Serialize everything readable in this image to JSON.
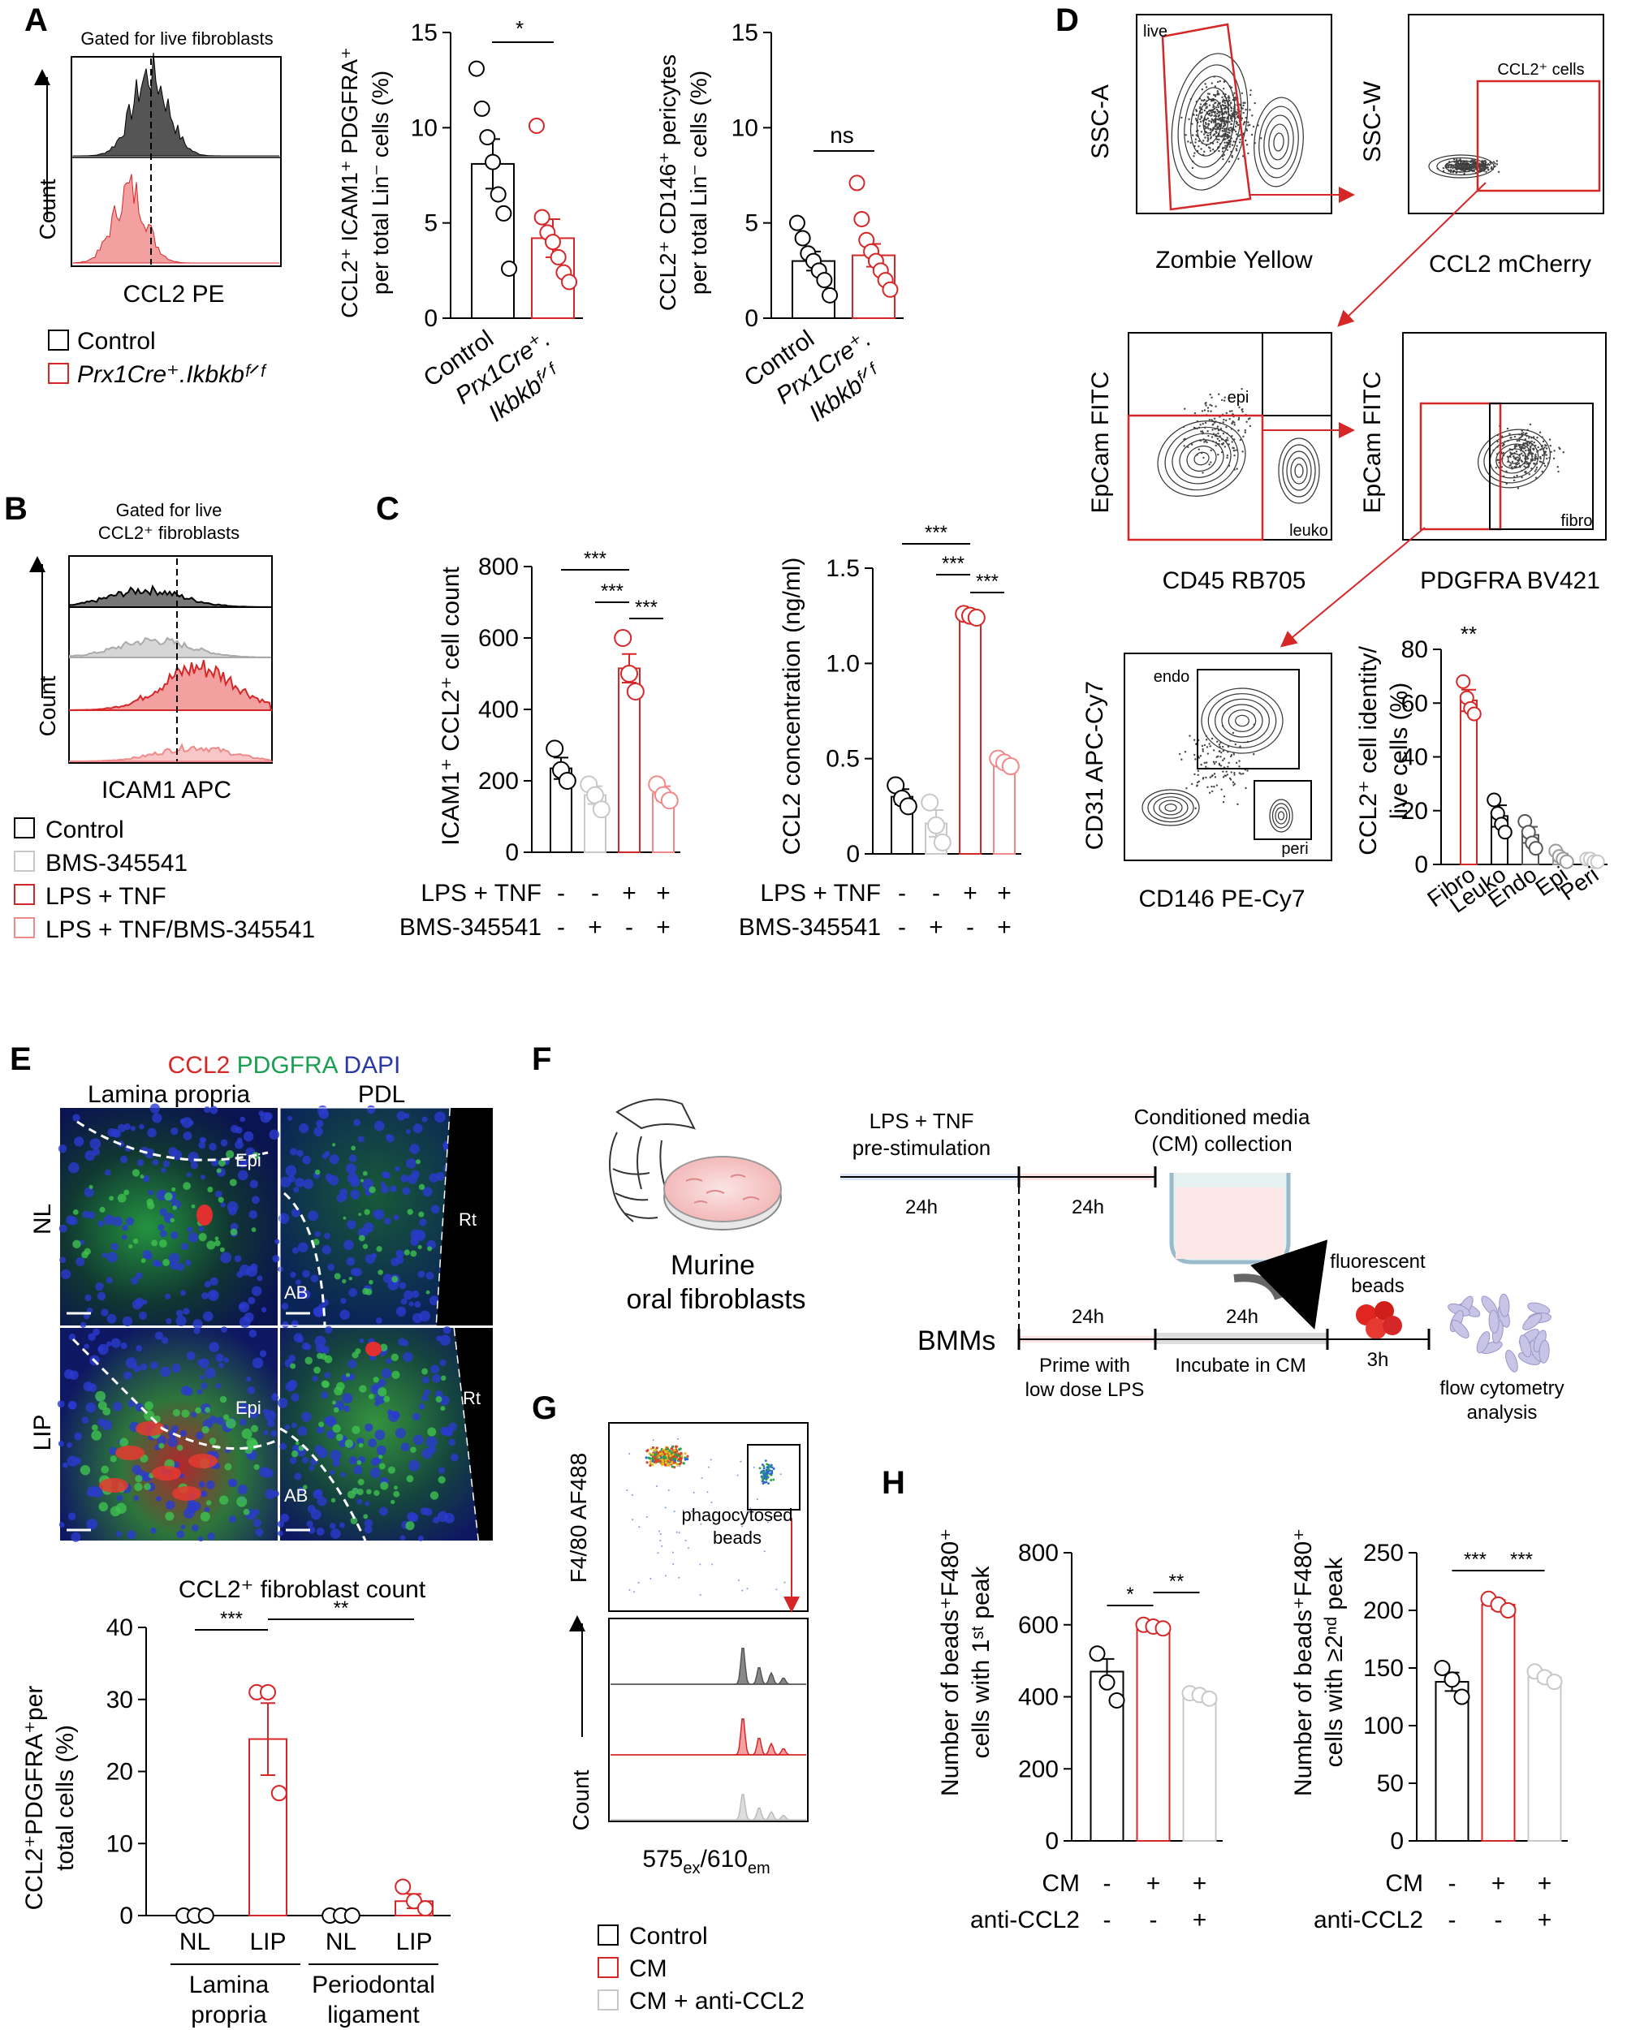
{
  "colors": {
    "control": "#000000",
    "treated": "#d62728",
    "inhibitor": "#c8c8c8",
    "combo": "#f08a8a"
  },
  "panelA": {
    "letter": "A",
    "histogram": {
      "title": "Gated for live fibroblasts",
      "xlabel": "CCL2 PE",
      "ylabel": "Count"
    },
    "legend": [
      "Control",
      "Prx1Cre⁺.Ikbkbᶠᐟᶠ"
    ],
    "scatter1": {
      "ylabel_lines": [
        "CCL2⁺ ICAM1⁺ PDGFRA⁺",
        "per total Lin⁻ cells (%)"
      ],
      "yticks": [
        "0",
        "5",
        "10",
        "15"
      ],
      "xticks": [
        "Control",
        "Prx1Cre⁺.",
        "Ikbkbᶠᐟᶠ"
      ],
      "sig": "*"
    },
    "scatter2": {
      "ylabel_lines": [
        "CCL2⁺ CD146⁺ pericytes",
        "per total Lin⁻ cells (%)"
      ],
      "yticks": [
        "0",
        "5",
        "10",
        "15"
      ],
      "xticks": [
        "Control",
        "Prx1Cre⁺.",
        "Ikbkbᶠᐟᶠ"
      ],
      "sig": "ns"
    }
  },
  "panelB": {
    "letter": "B",
    "title_lines": [
      "Gated for live",
      "CCL2⁺ fibroblasts"
    ],
    "xlabel": "ICAM1 APC",
    "ylabel": "Count",
    "legend": [
      "Control",
      "BMS-345541",
      "LPS + TNF",
      "LPS + TNF/BMS-345541"
    ]
  },
  "panelC": {
    "letter": "C",
    "chart1": {
      "ylabel": "ICAM1⁺ CCL2⁺ cell count",
      "yticks": [
        "0",
        "200",
        "400",
        "600",
        "800"
      ],
      "sig": [
        "***",
        "***",
        "***"
      ]
    },
    "chart2": {
      "ylabel": "CCL2 concentration (ng/ml)",
      "yticks": [
        "0",
        "0.5",
        "1.0",
        "1.5"
      ],
      "sig": [
        "***",
        "***",
        "***"
      ]
    },
    "row1_label": "LPS + TNF",
    "row2_label": "BMS-345541",
    "row1_signs": [
      "-",
      "-",
      "+",
      "+"
    ],
    "row2_signs": [
      "-",
      "+",
      "-",
      "+"
    ]
  },
  "panelD": {
    "letter": "D",
    "plot1": {
      "ylabel": "SSC-A",
      "xlabel": "Zombie Yellow",
      "gate": "live"
    },
    "plot2": {
      "ylabel": "SSC-W",
      "xlabel": "CCL2 mCherry",
      "gate": "CCL2⁺ cells"
    },
    "plot3": {
      "ylabel": "EpCam FITC",
      "xlabel": "CD45 RB705",
      "gates": [
        "epi",
        "leuko"
      ]
    },
    "plot4": {
      "ylabel": "EpCam FITC",
      "xlabel": "PDGFRA BV421",
      "gate": "fibro"
    },
    "plot5": {
      "ylabel": "CD31 APC-Cy7",
      "xlabel": "CD146 PE-Cy7",
      "gates": [
        "endo",
        "peri"
      ]
    },
    "bar": {
      "ylabel_lines": [
        "CCL2⁺ cell identity/",
        "live cells (%)"
      ],
      "yticks": [
        "0",
        "20",
        "40",
        "60",
        "80"
      ],
      "sig": "**"
    }
  },
  "panelE": {
    "letter": "E",
    "stain": {
      "ccl2": "CCL2",
      "pdgfra": "PDGFRA",
      "dapi": "DAPI"
    },
    "col_headers": [
      "Lamina propria",
      "PDL"
    ],
    "row_labels": [
      "NL",
      "LIP"
    ],
    "tissue_labels": {
      "epi": "Epi",
      "ab": "AB",
      "rt": "Rt"
    },
    "chart_title": "CCL2⁺ fibroblast count",
    "ylabel_lines": [
      "CCL2⁺PDGFRA⁺per",
      "total cells (%)"
    ],
    "yticks": [
      "0",
      "10",
      "20",
      "30",
      "40"
    ],
    "groups": [
      "Lamina",
      "propria",
      "Periodontal",
      "ligament"
    ],
    "sig": [
      "***",
      "**"
    ]
  },
  "panelF": {
    "letter": "F",
    "murine_lines": [
      "Murine",
      "oral fibroblasts"
    ],
    "prestim_lines": [
      "LPS + TNF",
      "pre-stimulation"
    ],
    "cm_lines": [
      "Conditioned media",
      "(CM) collection"
    ],
    "t1": "24h",
    "t2": "24h",
    "t3": "24h",
    "t4": "24h",
    "t5": "3h",
    "bmms": "BMMs",
    "beads_lines": [
      "fluorescent",
      "beads"
    ],
    "prime_lines": [
      "Prime with",
      "low dose LPS"
    ],
    "incubate": "Incubate in CM",
    "flow_lines": [
      "flow cytometry",
      "analysis"
    ]
  },
  "panelG": {
    "letter": "G",
    "ylabel": "F4/80 AF488",
    "gate_lines": [
      "phagocytosed",
      "beads"
    ],
    "hist_ylabel": "Count",
    "xlabel_main": "575",
    "xlabel_sub1": "ex",
    "xlabel_mid": "/610",
    "xlabel_sub2": "em",
    "legend": [
      "Control",
      "CM",
      "CM + anti-CCL2"
    ]
  },
  "panelH": {
    "letter": "H",
    "chart1": {
      "ylabel_lines": [
        "Number of beads⁺F480⁺",
        "cells with 1ˢᵗ peak"
      ],
      "yticks": [
        "0",
        "200",
        "400",
        "600",
        "800"
      ],
      "sig": [
        "*",
        "**"
      ]
    },
    "chart2": {
      "ylabel_lines": [
        "Number of beads⁺F480⁺",
        "cells with ≥2ⁿᵈ peak"
      ],
      "yticks": [
        "0",
        "50",
        "100",
        "150",
        "200",
        "250"
      ],
      "sig": [
        "***",
        "***"
      ]
    },
    "row1_label": "CM",
    "row2_label": "anti-CCL2",
    "row1_signs": [
      "-",
      "+",
      "+"
    ],
    "row2_signs": [
      "-",
      "-",
      "+"
    ]
  },
  "chart_data": [
    {
      "id": "A-left",
      "type": "bar",
      "categories": [
        "Control",
        "Prx1Cre⁺.Ikbkbᶠᐟᶠ"
      ],
      "values": [
        8.1,
        4.2
      ],
      "errors": [
        1.3,
        1.0
      ],
      "points": [
        [
          13.1,
          11.0,
          9.5,
          8.2,
          6.5,
          5.5,
          2.6
        ],
        [
          10.1,
          5.3,
          4.5,
          4.0,
          3.2,
          2.4,
          1.9
        ]
      ],
      "ylim": [
        0,
        15
      ]
    },
    {
      "id": "A-right",
      "type": "bar",
      "categories": [
        "Control",
        "Prx1Cre⁺.Ikbkbᶠᐟᶠ"
      ],
      "values": [
        3.0,
        3.3
      ],
      "errors": [
        0.5,
        0.6
      ],
      "points": [
        [
          5.0,
          4.2,
          3.4,
          3.0,
          2.5,
          2.0,
          1.2
        ],
        [
          7.1,
          5.2,
          4.1,
          3.5,
          3.0,
          2.5,
          2.0,
          1.5
        ]
      ],
      "ylim": [
        0,
        15
      ]
    },
    {
      "id": "C-left",
      "type": "bar",
      "categories": [
        "Control",
        "BMS-345541",
        "LPS + TNF",
        "LPS + TNF/BMS-345541"
      ],
      "values": [
        235,
        160,
        515,
        165
      ],
      "errors": [
        30,
        25,
        40,
        20
      ],
      "points": [
        [
          290,
          230,
          200
        ],
        [
          190,
          160,
          120
        ],
        [
          600,
          500,
          450
        ],
        [
          190,
          160,
          145
        ]
      ],
      "ylim": [
        0,
        800
      ]
    },
    {
      "id": "C-right",
      "type": "bar",
      "categories": [
        "Control",
        "BMS-345541",
        "LPS + TNF",
        "LPS + TNF/BMS-345541"
      ],
      "values": [
        0.3,
        0.16,
        1.25,
        0.48
      ],
      "errors": [
        0.04,
        0.07,
        0.01,
        0.02
      ],
      "points": [
        [
          0.36,
          0.29,
          0.25
        ],
        [
          0.27,
          0.15,
          0.06
        ],
        [
          1.26,
          1.25,
          1.24
        ],
        [
          0.5,
          0.48,
          0.46
        ]
      ],
      "ylim": [
        0,
        1.5
      ]
    },
    {
      "id": "D-bar",
      "type": "bar",
      "categories": [
        "Fibro",
        "Leuko",
        "Endo",
        "Epi",
        "Peri"
      ],
      "values": [
        61,
        18,
        11,
        3,
        1.5
      ],
      "errors": [
        4,
        4,
        3,
        1,
        0.5
      ],
      "points": [
        [
          68,
          62,
          58,
          56
        ],
        [
          24,
          19,
          15,
          12
        ],
        [
          16,
          12,
          8,
          6
        ],
        [
          5,
          3,
          2,
          1
        ],
        [
          2,
          2,
          1,
          1
        ]
      ],
      "ylim": [
        0,
        80
      ]
    },
    {
      "id": "E-bar",
      "type": "bar",
      "categories": [
        "NL",
        "LIP",
        "NL",
        "LIP"
      ],
      "values": [
        0,
        24.5,
        0,
        2
      ],
      "errors": [
        0,
        5,
        0,
        1
      ],
      "points": [
        [
          0,
          0,
          0
        ],
        [
          31,
          31,
          17
        ],
        [
          0,
          0,
          0
        ],
        [
          4,
          2,
          1
        ]
      ],
      "ylim": [
        0,
        40
      ]
    },
    {
      "id": "H-left",
      "type": "bar",
      "categories": [
        "Control",
        "CM",
        "CM + anti-CCL2"
      ],
      "values": [
        470,
        595,
        405
      ],
      "errors": [
        35,
        5,
        10
      ],
      "points": [
        [
          520,
          440,
          390
        ],
        [
          600,
          595,
          590
        ],
        [
          410,
          405,
          395
        ]
      ],
      "ylim": [
        0,
        800
      ]
    },
    {
      "id": "H-right",
      "type": "bar",
      "categories": [
        "Control",
        "CM",
        "CM + anti-CCL2"
      ],
      "values": [
        138,
        205,
        142
      ],
      "errors": [
        8,
        4,
        4
      ],
      "points": [
        [
          150,
          140,
          125
        ],
        [
          210,
          205,
          200
        ],
        [
          147,
          142,
          138
        ]
      ],
      "ylim": [
        0,
        250
      ]
    }
  ]
}
